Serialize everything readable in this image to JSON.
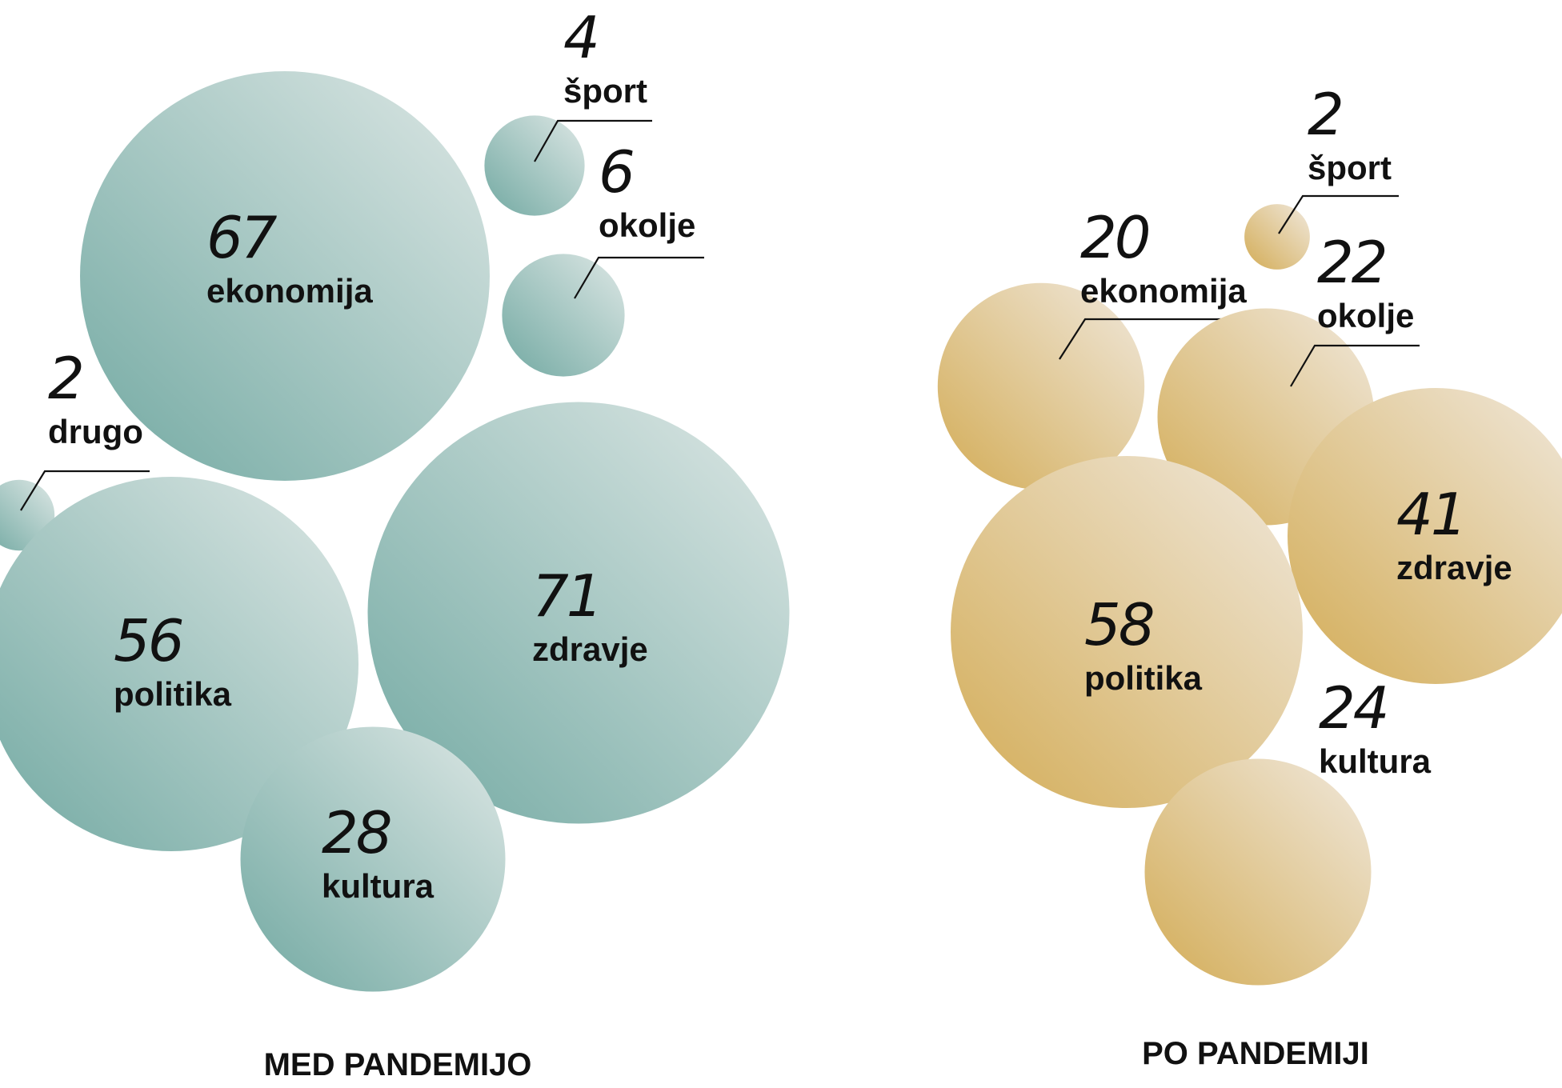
{
  "chart_data": [
    {
      "type": "bubble",
      "title": "MED PANDEMIJO",
      "color_dark": "#72a9a2",
      "color_light": "#dde7e5",
      "categories": [
        "ekonomija",
        "šport",
        "okolje",
        "drugo",
        "politika",
        "zdravje",
        "kultura"
      ],
      "values": [
        67,
        4,
        6,
        2,
        56,
        71,
        28
      ],
      "display": [
        "67",
        "4",
        "6",
        "2",
        "56",
        "71",
        "28"
      ]
    },
    {
      "type": "bubble",
      "title": "PO PANDEMIJI",
      "color_dark": "#d3ac56",
      "color_light": "#f0e8dc",
      "categories": [
        "šport",
        "ekonomija",
        "okolje",
        "zdravje",
        "politika",
        "kultura"
      ],
      "values": [
        2,
        20,
        22,
        41,
        58,
        24
      ],
      "display": [
        "2",
        "20",
        "22",
        "41",
        "58",
        "24"
      ]
    }
  ]
}
